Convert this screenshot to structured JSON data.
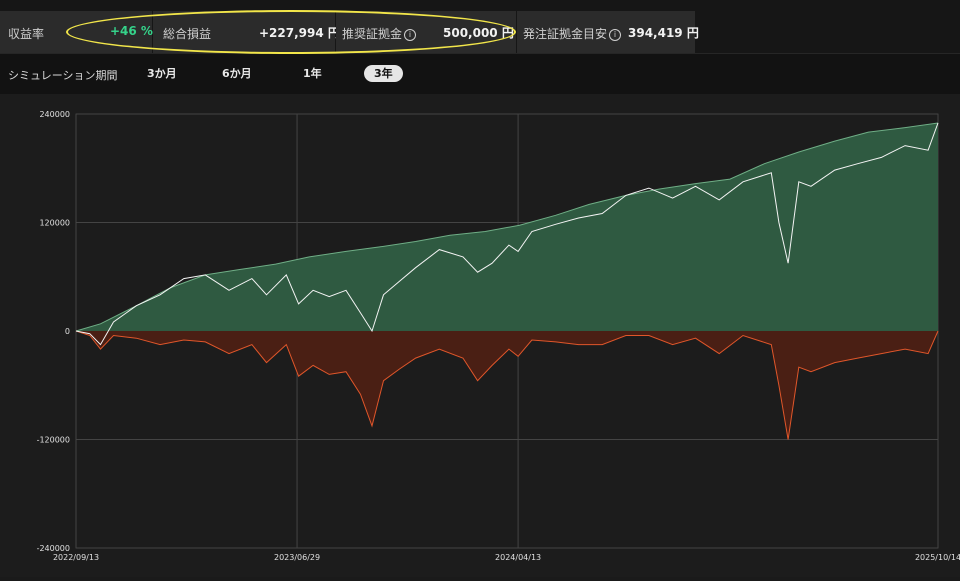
{
  "stats": [
    {
      "label": "収益率",
      "value": "+46 %",
      "positive": true,
      "info": false
    },
    {
      "label": "総合損益",
      "value": "+227,994 円",
      "positive": false,
      "info": false
    },
    {
      "label": "推奨証拠金",
      "value": "500,000 円",
      "positive": false,
      "info": true
    },
    {
      "label": "発注証拠金目安",
      "value": "394,419 円",
      "positive": false,
      "info": true
    }
  ],
  "info_icon_glyph": "i",
  "period": {
    "label": "シミュレーション期間",
    "options": [
      "3か月",
      "6か月",
      "1年",
      "3年"
    ],
    "selected": "3年"
  },
  "chart_data": {
    "type": "area",
    "x_ticks": [
      "2022/09/13",
      "2023/06/29",
      "2024/04/13",
      "2025/10/14"
    ],
    "y_ticks": [
      "240000",
      "120000",
      "0",
      "-120000",
      "-240000"
    ],
    "ylim": [
      -240000,
      240000
    ],
    "xlim": [
      "2022/09/13",
      "2025/10/14"
    ],
    "grid": true,
    "colors": {
      "peak_fill": "#2f5a41",
      "peak_line": "#6fae86",
      "pl_line": "#f4f4f4",
      "dd_fill": "#4a1f14",
      "dd_line": "#e0562a"
    },
    "series": [
      {
        "key": "peak",
        "x": [
          "2022/09/13",
          "2022/10/15",
          "2022/12/01",
          "2023/01/15",
          "2023/03/01",
          "2023/04/15",
          "2023/06/01",
          "2023/07/15",
          "2023/09/01",
          "2023/10/15",
          "2023/12/01",
          "2024/01/15",
          "2024/03/01",
          "2024/04/15",
          "2024/06/01",
          "2024/07/15",
          "2024/09/01",
          "2024/10/15",
          "2024/12/01",
          "2025/01/15",
          "2025/03/01",
          "2025/04/15",
          "2025/06/01",
          "2025/07/15",
          "2025/09/01",
          "2025/10/14"
        ],
        "y": [
          0,
          8000,
          28000,
          48000,
          62000,
          68000,
          74000,
          82000,
          88000,
          93000,
          99000,
          106000,
          110000,
          117000,
          128000,
          140000,
          150000,
          157000,
          163000,
          168000,
          185000,
          198000,
          210000,
          220000,
          225000,
          230000
        ]
      },
      {
        "key": "pl",
        "x": [
          "2022/09/13",
          "2022/10/01",
          "2022/10/15",
          "2022/11/01",
          "2022/12/01",
          "2023/01/01",
          "2023/02/01",
          "2023/03/01",
          "2023/04/01",
          "2023/05/01",
          "2023/05/20",
          "2023/06/15",
          "2023/07/01",
          "2023/07/20",
          "2023/08/10",
          "2023/09/01",
          "2023/09/20",
          "2023/10/05",
          "2023/10/20",
          "2023/11/10",
          "2023/12/01",
          "2024/01/01",
          "2024/02/01",
          "2024/02/20",
          "2024/03/10",
          "2024/04/01",
          "2024/04/13",
          "2024/05/01",
          "2024/06/01",
          "2024/07/01",
          "2024/08/01",
          "2024/09/01",
          "2024/10/01",
          "2024/11/01",
          "2024/12/01",
          "2025/01/01",
          "2025/02/01",
          "2025/03/10",
          "2025/03/20",
          "2025/04/01",
          "2025/04/15",
          "2025/05/01",
          "2025/06/01",
          "2025/07/01",
          "2025/08/01",
          "2025/09/01",
          "2025/10/01",
          "2025/10/14"
        ],
        "y": [
          0,
          -3000,
          -15000,
          10000,
          28000,
          40000,
          58000,
          62000,
          45000,
          58000,
          40000,
          62000,
          30000,
          45000,
          38000,
          45000,
          20000,
          0,
          40000,
          55000,
          70000,
          90000,
          82000,
          65000,
          75000,
          95000,
          88000,
          110000,
          118000,
          125000,
          130000,
          150000,
          158000,
          147000,
          160000,
          145000,
          165000,
          175000,
          120000,
          75000,
          165000,
          160000,
          178000,
          185000,
          192000,
          205000,
          200000,
          230000
        ]
      },
      {
        "key": "drawdown",
        "x": [
          "2022/09/13",
          "2022/10/01",
          "2022/10/15",
          "2022/11/01",
          "2022/12/01",
          "2023/01/01",
          "2023/02/01",
          "2023/03/01",
          "2023/04/01",
          "2023/05/01",
          "2023/05/20",
          "2023/06/15",
          "2023/07/01",
          "2023/07/20",
          "2023/08/10",
          "2023/09/01",
          "2023/09/20",
          "2023/10/05",
          "2023/10/20",
          "2023/11/10",
          "2023/12/01",
          "2024/01/01",
          "2024/02/01",
          "2024/02/20",
          "2024/03/10",
          "2024/04/01",
          "2024/04/13",
          "2024/05/01",
          "2024/06/01",
          "2024/07/01",
          "2024/08/01",
          "2024/09/01",
          "2024/10/01",
          "2024/11/01",
          "2024/12/01",
          "2025/01/01",
          "2025/02/01",
          "2025/03/10",
          "2025/03/20",
          "2025/04/01",
          "2025/04/15",
          "2025/05/01",
          "2025/06/01",
          "2025/07/01",
          "2025/08/01",
          "2025/09/01",
          "2025/10/01",
          "2025/10/14"
        ],
        "y": [
          0,
          -5000,
          -20000,
          -5000,
          -8000,
          -15000,
          -10000,
          -12000,
          -25000,
          -15000,
          -35000,
          -15000,
          -50000,
          -38000,
          -48000,
          -45000,
          -70000,
          -105000,
          -55000,
          -42000,
          -30000,
          -20000,
          -30000,
          -55000,
          -38000,
          -20000,
          -28000,
          -10000,
          -12000,
          -15000,
          -15000,
          -5000,
          -5000,
          -15000,
          -8000,
          -25000,
          -5000,
          -15000,
          -60000,
          -120000,
          -40000,
          -45000,
          -35000,
          -30000,
          -25000,
          -20000,
          -25000,
          0
        ]
      }
    ]
  }
}
